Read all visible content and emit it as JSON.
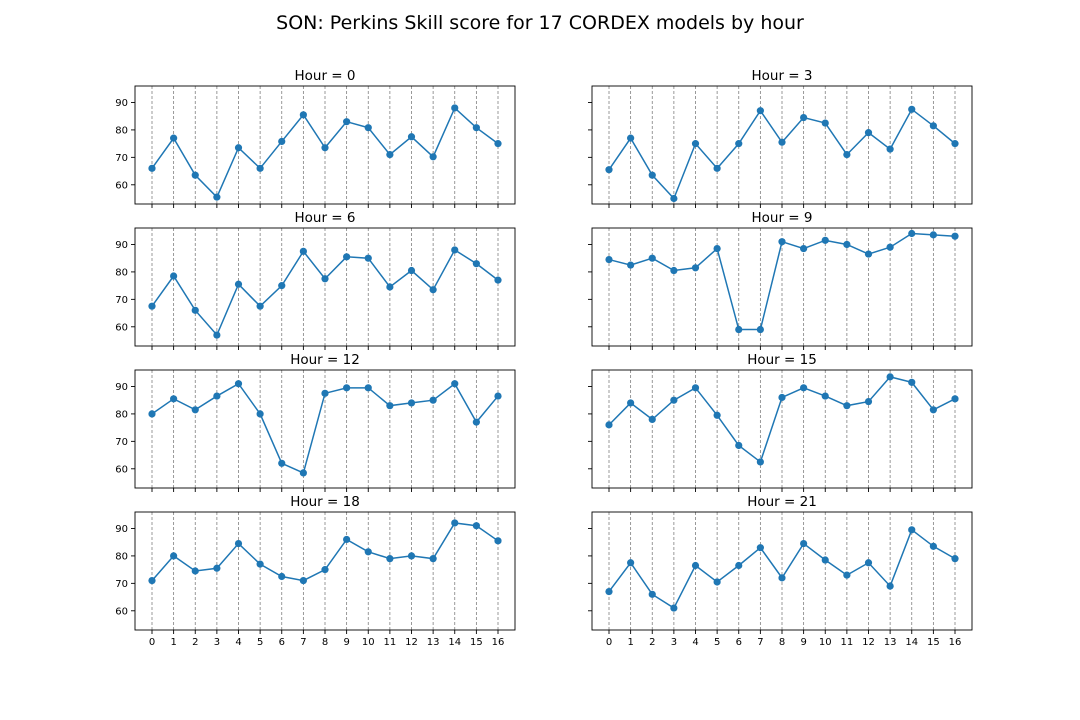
{
  "figure": {
    "title": "SON: Perkins Skill score for 17 CORDEX models by hour"
  },
  "colors": {
    "series": "#1f77b4",
    "grid": "#808080"
  },
  "chart_data": [
    {
      "type": "line",
      "title": "Hour = 0",
      "x": [
        0,
        1,
        2,
        3,
        4,
        5,
        6,
        7,
        8,
        9,
        10,
        11,
        12,
        13,
        14,
        15,
        16
      ],
      "values": [
        66,
        77,
        63.5,
        55.5,
        73.5,
        66,
        75.8,
        85.5,
        73.5,
        83,
        80.8,
        71,
        77.5,
        70.2,
        88,
        80.8,
        75
      ],
      "ylim": [
        53,
        96
      ],
      "yticks": [
        60,
        70,
        80,
        90
      ],
      "grid": "x-dashed"
    },
    {
      "type": "line",
      "title": "Hour = 3",
      "x": [
        0,
        1,
        2,
        3,
        4,
        5,
        6,
        7,
        8,
        9,
        10,
        11,
        12,
        13,
        14,
        15,
        16
      ],
      "values": [
        65.5,
        77,
        63.5,
        55,
        75,
        66,
        75,
        87,
        75.5,
        84.5,
        82.5,
        71,
        79,
        73,
        87.5,
        81.5,
        75
      ],
      "ylim": [
        53,
        96
      ],
      "yticks": [
        60,
        70,
        80,
        90
      ],
      "grid": "x-dashed"
    },
    {
      "type": "line",
      "title": "Hour = 6",
      "x": [
        0,
        1,
        2,
        3,
        4,
        5,
        6,
        7,
        8,
        9,
        10,
        11,
        12,
        13,
        14,
        15,
        16
      ],
      "values": [
        67.5,
        78.5,
        66,
        57,
        75.5,
        67.5,
        75,
        87.5,
        77.5,
        85.5,
        85,
        74.5,
        80.5,
        73.5,
        88,
        83,
        77
      ],
      "ylim": [
        53,
        96
      ],
      "yticks": [
        60,
        70,
        80,
        90
      ],
      "grid": "x-dashed"
    },
    {
      "type": "line",
      "title": "Hour = 9",
      "x": [
        0,
        1,
        2,
        3,
        4,
        5,
        6,
        7,
        8,
        9,
        10,
        11,
        12,
        13,
        14,
        15,
        16
      ],
      "values": [
        84.5,
        82.5,
        85,
        80.5,
        81.5,
        88.5,
        59,
        59,
        91,
        88.5,
        91.5,
        90,
        86.5,
        89,
        94,
        93.5,
        93
      ],
      "ylim": [
        53,
        96
      ],
      "yticks": [
        60,
        70,
        80,
        90
      ],
      "grid": "x-dashed"
    },
    {
      "type": "line",
      "title": "Hour = 12",
      "x": [
        0,
        1,
        2,
        3,
        4,
        5,
        6,
        7,
        8,
        9,
        10,
        11,
        12,
        13,
        14,
        15,
        16
      ],
      "values": [
        80,
        85.5,
        81.5,
        86.5,
        91,
        80,
        62,
        58.5,
        87.5,
        89.5,
        89.5,
        83,
        84,
        85,
        91,
        77,
        86.5
      ],
      "ylim": [
        53,
        96
      ],
      "yticks": [
        60,
        70,
        80,
        90
      ],
      "grid": "x-dashed"
    },
    {
      "type": "line",
      "title": "Hour = 15",
      "x": [
        0,
        1,
        2,
        3,
        4,
        5,
        6,
        7,
        8,
        9,
        10,
        11,
        12,
        13,
        14,
        15,
        16
      ],
      "values": [
        76,
        84,
        78,
        85,
        89.5,
        79.5,
        68.5,
        62.5,
        86,
        89.5,
        86.5,
        83,
        84.5,
        93.5,
        91.5,
        81.5,
        85.5
      ],
      "ylim": [
        53,
        96
      ],
      "yticks": [
        60,
        70,
        80,
        90
      ],
      "grid": "x-dashed"
    },
    {
      "type": "line",
      "title": "Hour = 18",
      "x": [
        0,
        1,
        2,
        3,
        4,
        5,
        6,
        7,
        8,
        9,
        10,
        11,
        12,
        13,
        14,
        15,
        16
      ],
      "values": [
        71,
        80,
        74.5,
        75.5,
        84.5,
        77,
        72.5,
        71,
        75,
        86,
        81.5,
        79,
        80,
        79,
        92,
        91,
        85.5
      ],
      "ylim": [
        53,
        96
      ],
      "yticks": [
        60,
        70,
        80,
        90
      ],
      "grid": "x-dashed"
    },
    {
      "type": "line",
      "title": "Hour = 21",
      "x": [
        0,
        1,
        2,
        3,
        4,
        5,
        6,
        7,
        8,
        9,
        10,
        11,
        12,
        13,
        14,
        15,
        16
      ],
      "values": [
        67,
        77.5,
        66,
        61,
        76.5,
        70.5,
        76.5,
        83,
        72,
        84.5,
        78.5,
        73,
        77.5,
        69,
        89.5,
        83.5,
        79
      ],
      "ylim": [
        53,
        96
      ],
      "yticks": [
        60,
        70,
        80,
        90
      ],
      "grid": "x-dashed"
    }
  ]
}
